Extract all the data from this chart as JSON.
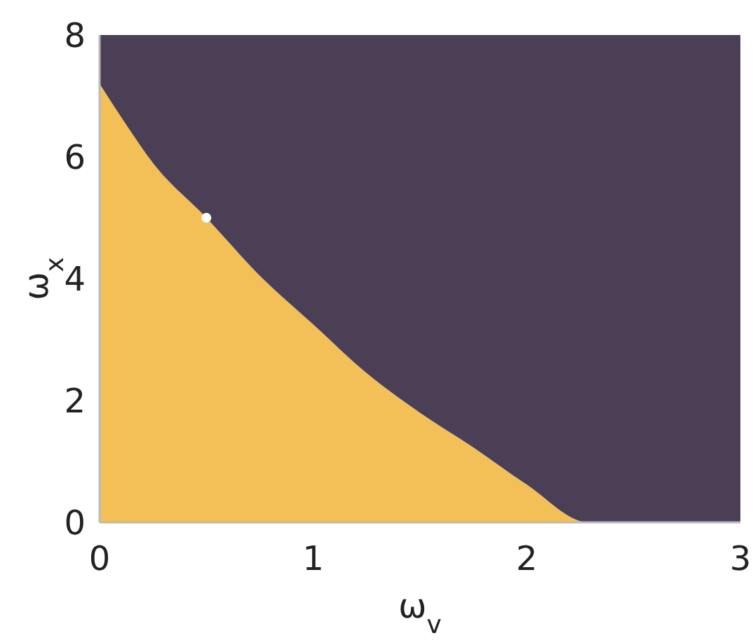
{
  "chart_data": {
    "type": "area",
    "stacked": true,
    "xlabel": "ω$_{v}$",
    "ylabel": "ω$_{x}$",
    "x": [
      0,
      0.13,
      0.25,
      0.5,
      0.75,
      1.0,
      1.25,
      1.5,
      1.75,
      2.0,
      2.29,
      3
    ],
    "xlim": [
      0,
      3
    ],
    "ylim": [
      0,
      8
    ],
    "xticks": [
      0,
      1,
      2,
      3
    ],
    "yticks": [
      0,
      2,
      4,
      6,
      8
    ],
    "grid": false,
    "series": [
      {
        "color": "#f2c057",
        "values": [
          7.2,
          6.5,
          5.9,
          5.0,
          4.05,
          3.25,
          2.45,
          1.8,
          1.23,
          0.62,
          0,
          0
        ]
      },
      {
        "color": "#4b3f55",
        "values": [
          0.8,
          1.5,
          2.1,
          3.0,
          3.95,
          4.75,
          5.55,
          6.2,
          6.77,
          7.38,
          8,
          8
        ]
      },
      {
        "type": "scatter",
        "color": "#ffffff",
        "x": [
          0.5
        ],
        "values": [
          5.0
        ],
        "marker": "circle"
      }
    ]
  }
}
